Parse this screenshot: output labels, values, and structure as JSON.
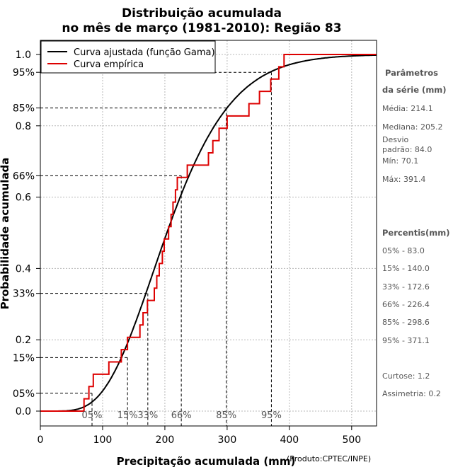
{
  "chart_data": {
    "type": "line",
    "title": "Distribuição acumulada",
    "subtitle": "no mês de março (1981-2010): Região 83",
    "xlabel": "Precipitação acumulada (mm)",
    "ylabel": "Probabilidade acumulada",
    "credit": "(Produto:CPTEC/INPE)",
    "xlim": [
      0,
      540
    ],
    "ylim": [
      0,
      1
    ],
    "x_ticks": [
      0,
      100,
      200,
      300,
      400,
      500
    ],
    "y_ticks": [
      {
        "value": 0.0,
        "label": "0.0"
      },
      {
        "value": 0.2,
        "label": "0.2"
      },
      {
        "value": 0.4,
        "label": "0.4"
      },
      {
        "value": 0.6,
        "label": "0.6"
      },
      {
        "value": 0.8,
        "label": "0.8"
      },
      {
        "value": 1.0,
        "label": "1.0"
      }
    ],
    "percentile_marks": [
      {
        "prob": 0.05,
        "label": "05%",
        "x": 83.0,
        "xlabel": "05%"
      },
      {
        "prob": 0.15,
        "label": "15%",
        "x": 140.0,
        "xlabel": "15%"
      },
      {
        "prob": 0.33,
        "label": "33%",
        "x": 172.6,
        "xlabel": "33%"
      },
      {
        "prob": 0.66,
        "label": "66%",
        "x": 226.4,
        "xlabel": "66%"
      },
      {
        "prob": 0.85,
        "label": "85%",
        "x": 298.6,
        "xlabel": "85%"
      },
      {
        "prob": 0.95,
        "label": "95%",
        "x": 371.1,
        "xlabel": "95%"
      }
    ],
    "legend": {
      "position": "top-left",
      "entries": [
        {
          "name": "Curva ajustada (função Gama)",
          "color": "#000000"
        },
        {
          "name": "Curva empírica",
          "color": "#dd0000"
        }
      ]
    },
    "gamma_fit": {
      "shape": 6.5,
      "mean": 214.1,
      "color": "#000000"
    },
    "empirical": {
      "color": "#dd0000",
      "samples": [
        70.1,
        78,
        85,
        110,
        130,
        140,
        160,
        165,
        172,
        183,
        187,
        191,
        196,
        199,
        206,
        210,
        213,
        217,
        220,
        236,
        270,
        277,
        287,
        300,
        335,
        352,
        370,
        383,
        391.4
      ]
    },
    "grid": true
  },
  "side_panel": {
    "params_title_1": "Parâmetros",
    "params_title_2": "da série (mm)",
    "media": "Média: 214.1",
    "mediana": "Mediana: 205.2",
    "desvio_1": "Desvio",
    "desvio_2": "padrão: 84.0",
    "min": "Mín: 70.1",
    "max": "Máx: 391.4",
    "percentis_title": "Percentis(mm)",
    "p05": "05% - 83.0",
    "p15": "15% - 140.0",
    "p33": "33% - 172.6",
    "p66": "66% - 226.4",
    "p85": "85% - 298.6",
    "p95": "95% - 371.1",
    "curtose": "Curtose: 1.2",
    "assimetria": "Assimetria: 0.2"
  }
}
